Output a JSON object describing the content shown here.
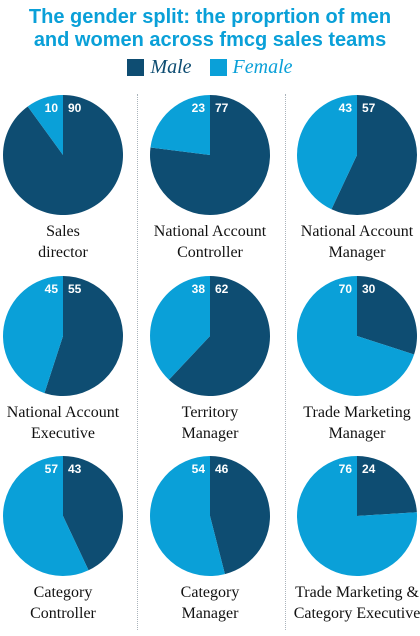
{
  "title_line1": "The gender split: the proprtion of men",
  "title_line2": "and women across fmcg sales teams",
  "legend": [
    {
      "label": "Male",
      "color": "#0e4d72"
    },
    {
      "label": "Female",
      "color": "#0aa0d8"
    }
  ],
  "chart_data": [
    {
      "type": "pie",
      "label_lines": [
        "Sales",
        "director"
      ],
      "categories": [
        "Male",
        "Female"
      ],
      "values": [
        90,
        10
      ]
    },
    {
      "type": "pie",
      "label_lines": [
        "National Account",
        "Controller"
      ],
      "categories": [
        "Male",
        "Female"
      ],
      "values": [
        77,
        23
      ]
    },
    {
      "type": "pie",
      "label_lines": [
        "National Account",
        "Manager"
      ],
      "categories": [
        "Male",
        "Female"
      ],
      "values": [
        57,
        43
      ]
    },
    {
      "type": "pie",
      "label_lines": [
        "National Account",
        "Executive"
      ],
      "categories": [
        "Male",
        "Female"
      ],
      "values": [
        55,
        45
      ]
    },
    {
      "type": "pie",
      "label_lines": [
        "Territory",
        "Manager"
      ],
      "categories": [
        "Male",
        "Female"
      ],
      "values": [
        62,
        38
      ]
    },
    {
      "type": "pie",
      "label_lines": [
        "Trade Marketing",
        "Manager"
      ],
      "categories": [
        "Male",
        "Female"
      ],
      "values": [
        30,
        70
      ]
    },
    {
      "type": "pie",
      "label_lines": [
        "Category",
        "Controller"
      ],
      "categories": [
        "Male",
        "Female"
      ],
      "values": [
        43,
        57
      ]
    },
    {
      "type": "pie",
      "label_lines": [
        "Category",
        "Manager"
      ],
      "categories": [
        "Male",
        "Female"
      ],
      "values": [
        46,
        54
      ]
    },
    {
      "type": "pie",
      "label_lines": [
        "Trade Marketing &",
        "Category Executive"
      ],
      "categories": [
        "Male",
        "Female"
      ],
      "values": [
        24,
        76
      ]
    }
  ]
}
